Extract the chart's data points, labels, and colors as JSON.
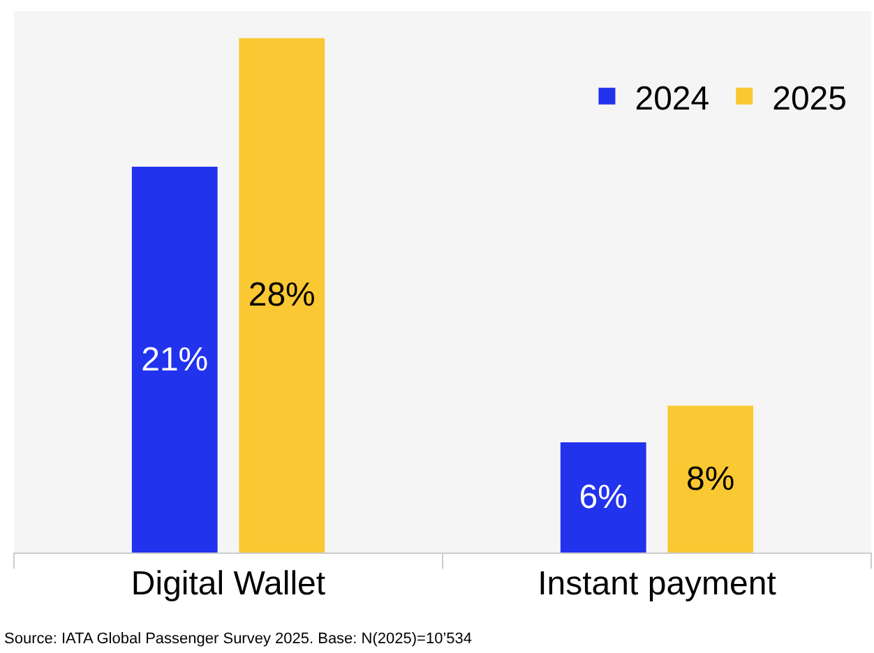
{
  "chart_data": {
    "type": "bar",
    "categories": [
      "Digital Wallet",
      "Instant payment"
    ],
    "series": [
      {
        "name": "2024",
        "color": "#2233ee",
        "values": [
          21,
          6
        ],
        "value_labels": [
          "21%",
          "6%"
        ]
      },
      {
        "name": "2025",
        "color": "#fac832",
        "values": [
          28,
          8
        ],
        "value_labels": [
          "28%",
          "8%"
        ]
      }
    ],
    "legend": "top right",
    "annotations": [
      "Source: IATA Global Passenger Survey 2025. Base: N(2025)=10’534"
    ]
  }
}
